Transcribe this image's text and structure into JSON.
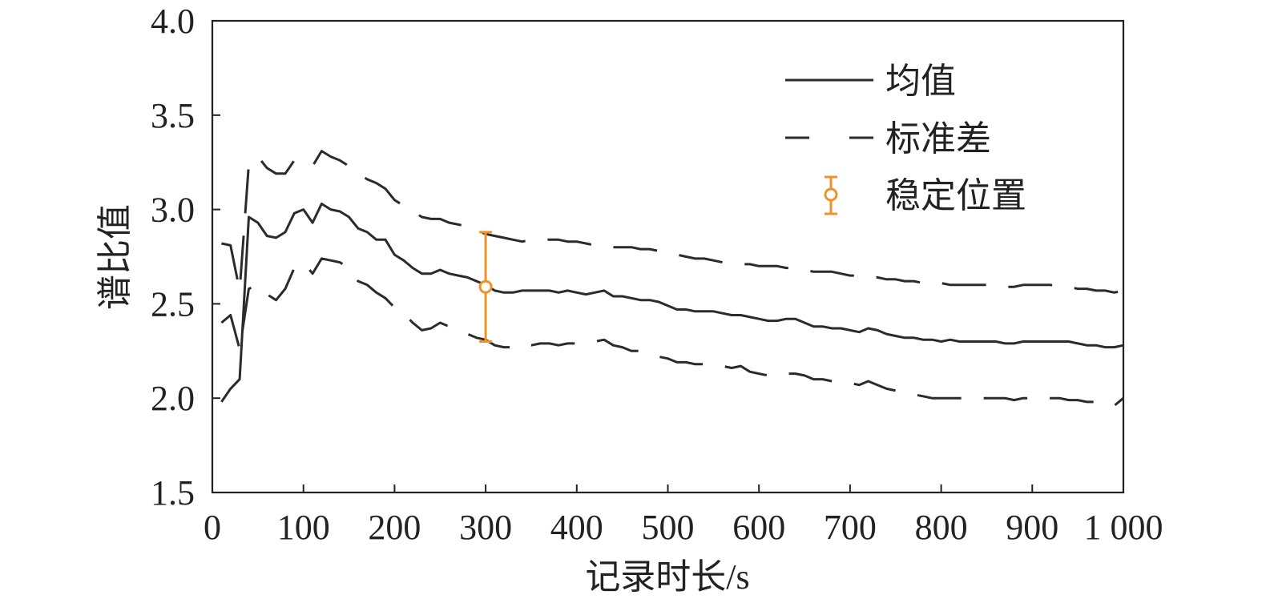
{
  "colors": {
    "axis": "#222222",
    "series": "#2b2b2b",
    "marker": "#f0922b",
    "background": "#ffffff"
  },
  "chart_data": {
    "type": "line",
    "title": "",
    "xlabel": "记录时长/s",
    "ylabel": "谱比值",
    "xlim": [
      0,
      1000
    ],
    "ylim": [
      1.5,
      4.0
    ],
    "xticks": [
      0,
      100,
      200,
      300,
      400,
      500,
      600,
      700,
      800,
      900,
      1000
    ],
    "xtick_labels": [
      "0",
      "100",
      "200",
      "300",
      "400",
      "500",
      "600",
      "700",
      "800",
      "900",
      "1 000"
    ],
    "yticks": [
      1.5,
      2.0,
      2.5,
      3.0,
      3.5,
      4.0
    ],
    "ytick_labels": [
      "1.5",
      "2.0",
      "2.5",
      "3.0",
      "3.5",
      "4.0"
    ],
    "grid": false,
    "legend_position": "top-right",
    "x": [
      10,
      20,
      30,
      40,
      50,
      60,
      70,
      80,
      90,
      100,
      110,
      120,
      130,
      140,
      150,
      160,
      170,
      180,
      190,
      200,
      210,
      220,
      230,
      240,
      250,
      260,
      270,
      280,
      290,
      300,
      310,
      320,
      330,
      340,
      350,
      360,
      370,
      380,
      390,
      400,
      410,
      420,
      430,
      440,
      450,
      460,
      470,
      480,
      490,
      500,
      510,
      520,
      530,
      540,
      550,
      560,
      570,
      580,
      590,
      600,
      610,
      620,
      630,
      640,
      650,
      660,
      670,
      680,
      690,
      700,
      710,
      720,
      730,
      740,
      750,
      760,
      770,
      780,
      790,
      800,
      810,
      820,
      830,
      840,
      850,
      860,
      870,
      880,
      890,
      900,
      910,
      920,
      930,
      940,
      950,
      960,
      970,
      980,
      990,
      1000
    ],
    "series": [
      {
        "name": "均值",
        "style": "solid",
        "values": [
          1.98,
          2.05,
          2.1,
          2.96,
          2.93,
          2.86,
          2.85,
          2.88,
          2.98,
          3.0,
          2.93,
          3.03,
          3.0,
          2.99,
          2.96,
          2.9,
          2.88,
          2.84,
          2.84,
          2.76,
          2.73,
          2.69,
          2.66,
          2.66,
          2.68,
          2.66,
          2.65,
          2.64,
          2.62,
          2.6,
          2.57,
          2.56,
          2.56,
          2.57,
          2.57,
          2.57,
          2.57,
          2.56,
          2.57,
          2.56,
          2.55,
          2.56,
          2.57,
          2.54,
          2.54,
          2.53,
          2.52,
          2.52,
          2.51,
          2.49,
          2.47,
          2.47,
          2.46,
          2.46,
          2.46,
          2.45,
          2.44,
          2.44,
          2.43,
          2.42,
          2.41,
          2.41,
          2.42,
          2.42,
          2.4,
          2.38,
          2.38,
          2.37,
          2.37,
          2.36,
          2.35,
          2.37,
          2.36,
          2.34,
          2.33,
          2.32,
          2.32,
          2.31,
          2.31,
          2.3,
          2.31,
          2.3,
          2.3,
          2.3,
          2.3,
          2.3,
          2.29,
          2.29,
          2.3,
          2.3,
          2.3,
          2.3,
          2.3,
          2.3,
          2.29,
          2.28,
          2.28,
          2.27,
          2.27,
          2.28
        ]
      },
      {
        "name": "标准差",
        "style": "dashed",
        "values": [
          2.82,
          2.81,
          2.57,
          3.24,
          3.28,
          3.22,
          3.19,
          3.19,
          3.26,
          3.25,
          3.23,
          3.31,
          3.28,
          3.26,
          3.23,
          3.19,
          3.16,
          3.14,
          3.11,
          3.05,
          3.02,
          2.99,
          2.96,
          2.95,
          2.95,
          2.93,
          2.92,
          2.91,
          2.89,
          2.87,
          2.86,
          2.85,
          2.84,
          2.83,
          2.84,
          2.84,
          2.84,
          2.84,
          2.83,
          2.83,
          2.82,
          2.81,
          2.81,
          2.8,
          2.8,
          2.8,
          2.79,
          2.79,
          2.78,
          2.77,
          2.76,
          2.75,
          2.74,
          2.74,
          2.73,
          2.72,
          2.72,
          2.71,
          2.71,
          2.7,
          2.7,
          2.7,
          2.69,
          2.69,
          2.68,
          2.67,
          2.67,
          2.67,
          2.66,
          2.65,
          2.65,
          2.64,
          2.64,
          2.63,
          2.63,
          2.62,
          2.62,
          2.61,
          2.61,
          2.61,
          2.6,
          2.6,
          2.6,
          2.6,
          2.6,
          2.6,
          2.59,
          2.59,
          2.6,
          2.6,
          2.6,
          2.6,
          2.59,
          2.59,
          2.58,
          2.58,
          2.57,
          2.57,
          2.56,
          2.57
        ]
      },
      {
        "name": "标准差",
        "style": "dashed",
        "values": [
          2.4,
          2.44,
          2.26,
          2.58,
          2.6,
          2.55,
          2.52,
          2.58,
          2.69,
          2.72,
          2.66,
          2.74,
          2.73,
          2.72,
          2.69,
          2.62,
          2.6,
          2.56,
          2.53,
          2.48,
          2.45,
          2.4,
          2.36,
          2.37,
          2.4,
          2.38,
          2.36,
          2.34,
          2.32,
          2.31,
          2.28,
          2.27,
          2.27,
          2.29,
          2.28,
          2.29,
          2.29,
          2.28,
          2.29,
          2.29,
          2.29,
          2.3,
          2.31,
          2.28,
          2.27,
          2.25,
          2.25,
          2.24,
          2.22,
          2.21,
          2.19,
          2.19,
          2.18,
          2.18,
          2.18,
          2.17,
          2.16,
          2.17,
          2.14,
          2.13,
          2.12,
          2.12,
          2.13,
          2.13,
          2.12,
          2.1,
          2.1,
          2.09,
          2.09,
          2.08,
          2.07,
          2.09,
          2.07,
          2.05,
          2.04,
          2.03,
          2.02,
          2.01,
          2.0,
          2.0,
          2.0,
          2.0,
          2.0,
          2.0,
          2.0,
          2.0,
          2.0,
          1.99,
          2.0,
          2.0,
          2.0,
          2.0,
          2.0,
          1.99,
          1.99,
          1.98,
          1.98,
          1.98,
          1.96,
          2.0
        ]
      }
    ],
    "stable_marker": {
      "name": "稳定位置",
      "x": 300,
      "y": 2.59,
      "lower": 2.3,
      "upper": 2.88
    },
    "legend": [
      {
        "label": "均值",
        "style": "solid"
      },
      {
        "label": "标准差",
        "style": "dashed"
      },
      {
        "label": "稳定位置",
        "style": "errorbar-marker"
      }
    ]
  }
}
